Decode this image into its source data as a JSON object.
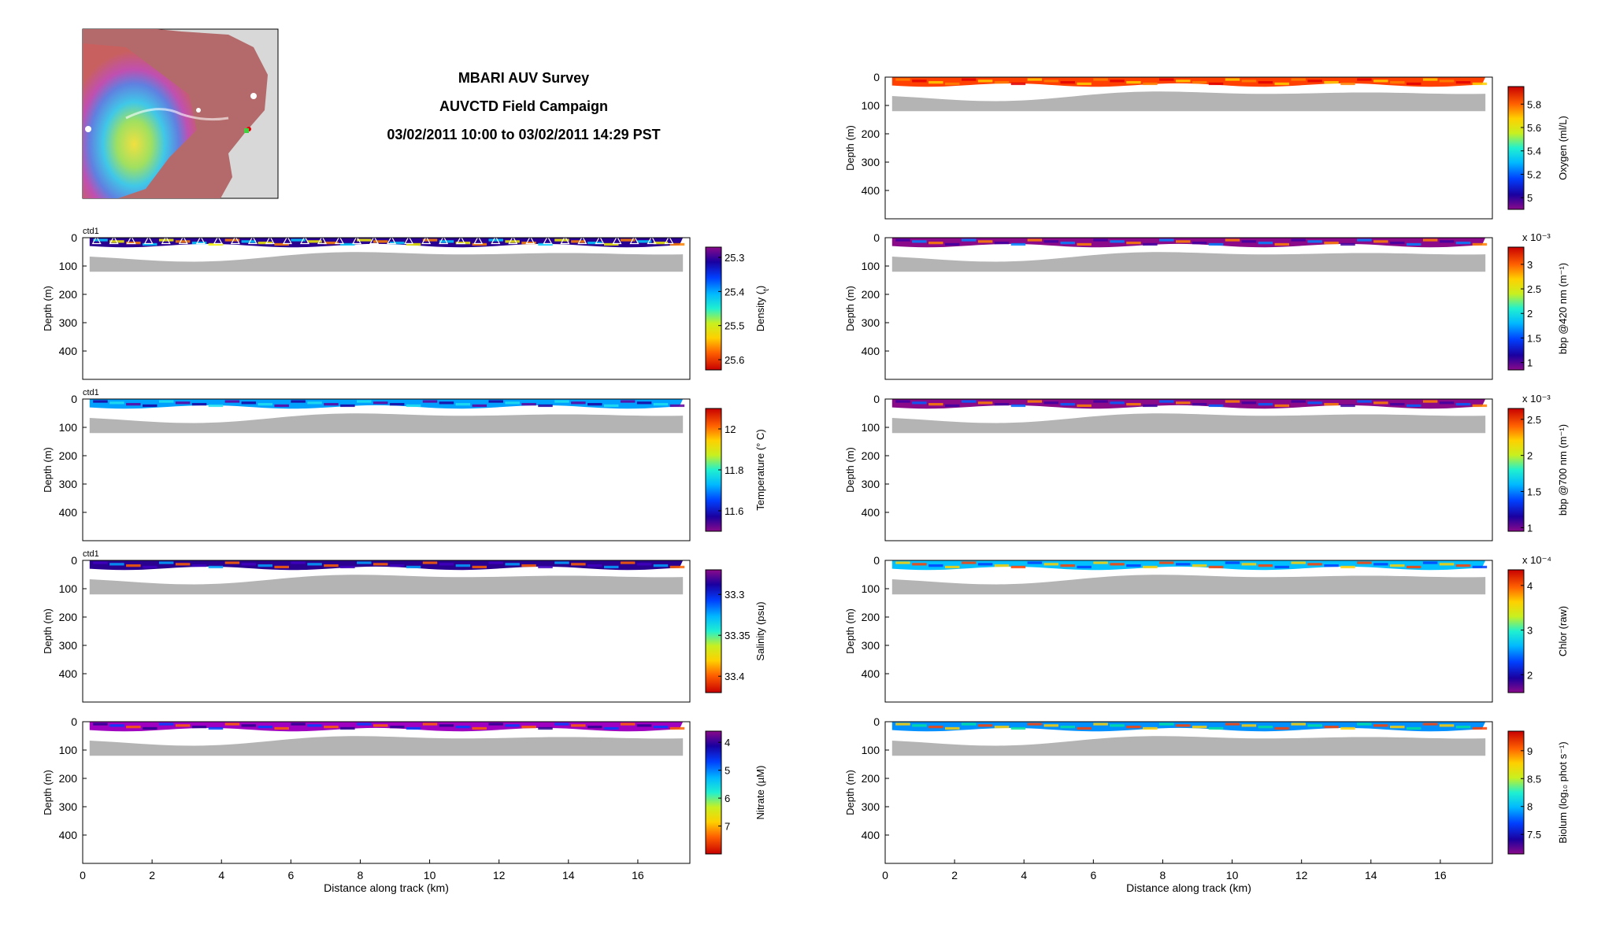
{
  "title": {
    "line1": "MBARI AUV Survey",
    "line2": "AUVCTD Field Campaign",
    "line3": "03/02/2011 10:00 to 03/02/2011 14:29 PST"
  },
  "chart_data": [
    {
      "type": "heatmap",
      "panel": "left-1",
      "corner_label": "ctd1",
      "xlabel": "",
      "ylabel": "Depth (m)",
      "xlim": [
        0,
        17.5
      ],
      "ylim": [
        500,
        0
      ],
      "x_ticks": [],
      "y_ticks": [
        0,
        100,
        200,
        300,
        400
      ],
      "show_profile_markers": true,
      "colorbar": {
        "label": "Density (σt)",
        "label_main": "Density (",
        "label_sub": "t",
        "label_end": ")",
        "multiplier": "",
        "ticks": [
          25.3,
          25.4,
          25.5,
          25.6
        ],
        "range": [
          25.63,
          25.27
        ],
        "reversed": true,
        "colormap": "jet"
      }
    },
    {
      "type": "heatmap",
      "panel": "left-2",
      "corner_label": "ctd1",
      "xlabel": "",
      "ylabel": "Depth (m)",
      "xlim": [
        0,
        17.5
      ],
      "ylim": [
        500,
        0
      ],
      "x_ticks": [],
      "y_ticks": [
        0,
        100,
        200,
        300,
        400
      ],
      "colorbar": {
        "label": "Temperature (° C)",
        "multiplier": "",
        "ticks": [
          12,
          11.8,
          11.6
        ],
        "range": [
          11.5,
          12.1
        ],
        "reversed": false,
        "colormap": "jet"
      }
    },
    {
      "type": "heatmap",
      "panel": "left-3",
      "corner_label": "ctd1",
      "xlabel": "",
      "ylabel": "Depth (m)",
      "xlim": [
        0,
        17.5
      ],
      "ylim": [
        500,
        0
      ],
      "x_ticks": [],
      "y_ticks": [
        0,
        100,
        200,
        300,
        400
      ],
      "colorbar": {
        "label": "Salinity (psu)",
        "multiplier": "",
        "ticks": [
          33.3,
          33.35,
          33.4
        ],
        "range": [
          33.42,
          33.27
        ],
        "reversed": true,
        "colormap": "jet"
      }
    },
    {
      "type": "heatmap",
      "panel": "left-4",
      "corner_label": "",
      "xlabel": "Distance along track (km)",
      "ylabel": "Depth (m)",
      "xlim": [
        0,
        17.5
      ],
      "ylim": [
        500,
        0
      ],
      "x_ticks": [
        0,
        2,
        4,
        6,
        8,
        10,
        12,
        14,
        16
      ],
      "y_ticks": [
        0,
        100,
        200,
        300,
        400
      ],
      "colorbar": {
        "label": "Nitrate (µM)",
        "multiplier": "",
        "ticks": [
          4,
          5,
          6,
          7
        ],
        "range": [
          8.0,
          3.6
        ],
        "reversed": true,
        "colormap": "jet"
      }
    },
    {
      "type": "heatmap",
      "panel": "right-1",
      "corner_label": "",
      "xlabel": "",
      "ylabel": "Depth (m)",
      "xlim": [
        0,
        17.5
      ],
      "ylim": [
        500,
        0
      ],
      "x_ticks": [],
      "y_ticks": [
        0,
        100,
        200,
        300,
        400
      ],
      "colorbar": {
        "label": "Oxygen (ml/L)",
        "multiplier": "",
        "ticks": [
          5,
          5.2,
          5.4,
          5.6,
          5.8
        ],
        "range": [
          4.9,
          5.95
        ],
        "reversed": false,
        "colormap": "jet"
      }
    },
    {
      "type": "heatmap",
      "panel": "right-2",
      "corner_label": "",
      "xlabel": "",
      "ylabel": "Depth (m)",
      "xlim": [
        0,
        17.5
      ],
      "ylim": [
        500,
        0
      ],
      "x_ticks": [],
      "y_ticks": [
        0,
        100,
        200,
        300,
        400
      ],
      "colorbar": {
        "label": "bbp @420 nm (m⁻¹)",
        "multiplier": "x 10⁻³",
        "ticks": [
          1,
          1.5,
          2,
          2.5,
          3
        ],
        "range": [
          0.85,
          3.35
        ],
        "reversed": false,
        "colormap": "jet"
      }
    },
    {
      "type": "heatmap",
      "panel": "right-3",
      "corner_label": "",
      "xlabel": "",
      "ylabel": "Depth (m)",
      "xlim": [
        0,
        17.5
      ],
      "ylim": [
        500,
        0
      ],
      "x_ticks": [],
      "y_ticks": [
        0,
        100,
        200,
        300,
        400
      ],
      "colorbar": {
        "label": "bbp @700 nm (m⁻¹)",
        "multiplier": "x 10⁻³",
        "ticks": [
          1,
          1.5,
          2,
          2.5
        ],
        "range": [
          0.95,
          2.65
        ],
        "reversed": false,
        "colormap": "jet"
      }
    },
    {
      "type": "heatmap",
      "panel": "right-4",
      "corner_label": "",
      "xlabel": "",
      "ylabel": "Depth (m)",
      "xlim": [
        0,
        17.5
      ],
      "ylim": [
        500,
        0
      ],
      "x_ticks": [],
      "y_ticks": [
        0,
        100,
        200,
        300,
        400
      ],
      "colorbar": {
        "label": "Chlor (raw)",
        "multiplier": "x 10⁻⁴",
        "ticks": [
          2,
          3,
          4
        ],
        "range": [
          1.6,
          4.35
        ],
        "reversed": false,
        "colormap": "jet"
      }
    },
    {
      "type": "heatmap",
      "panel": "right-5",
      "corner_label": "",
      "xlabel": "Distance along track (km)",
      "ylabel": "Depth (m)",
      "xlim": [
        0,
        17.5
      ],
      "ylim": [
        500,
        0
      ],
      "x_ticks": [
        0,
        2,
        4,
        6,
        8,
        10,
        12,
        14,
        16
      ],
      "y_ticks": [
        0,
        100,
        200,
        300,
        400
      ],
      "colorbar": {
        "label": "Biolum (log₁₀ phot s⁻¹)",
        "multiplier": "",
        "ticks": [
          7.5,
          8,
          8.5,
          9
        ],
        "range": [
          7.15,
          9.35
        ],
        "reversed": false,
        "colormap": "jet"
      }
    }
  ]
}
